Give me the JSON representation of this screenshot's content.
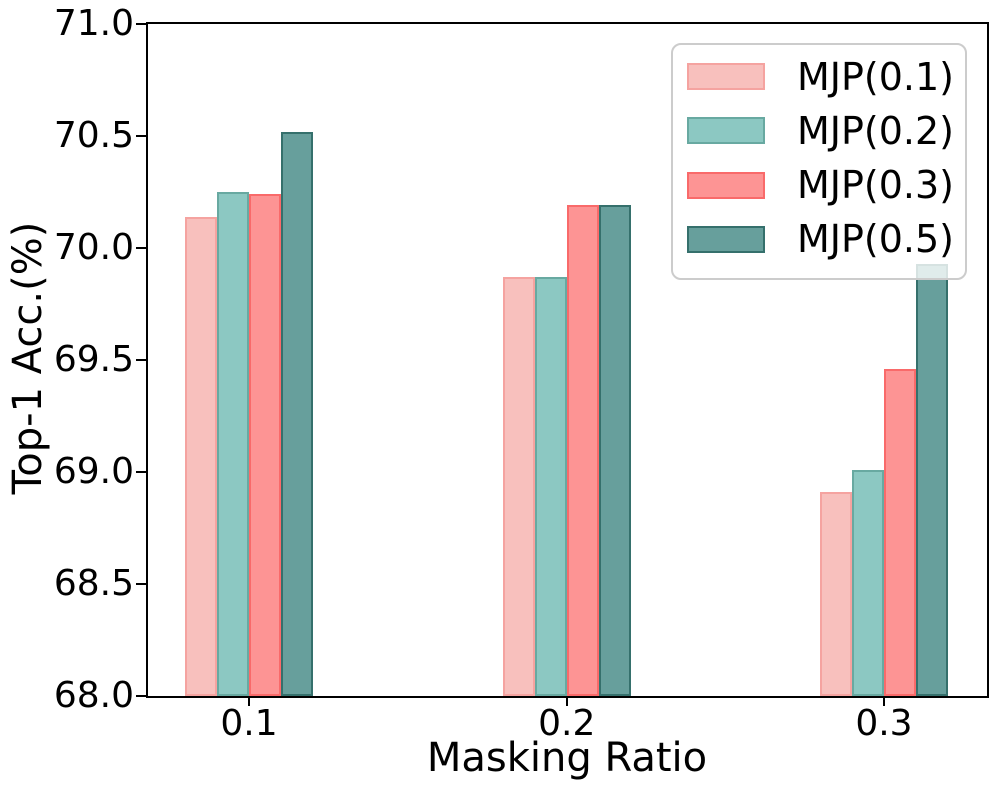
{
  "chart_data": {
    "type": "bar",
    "title": "",
    "xlabel": "Masking Ratio",
    "ylabel": "Top-1 Acc.(%)",
    "categories": [
      "0.1",
      "0.2",
      "0.3"
    ],
    "series": [
      {
        "name": "MJP(0.1)",
        "values": [
          70.14,
          69.87,
          68.91
        ],
        "fill": "#f8c0bd",
        "edge": "#f5a3a0"
      },
      {
        "name": "MJP(0.2)",
        "values": [
          70.25,
          69.87,
          69.01
        ],
        "fill": "#8cc8c2",
        "edge": "#68a9a1"
      },
      {
        "name": "MJP(0.3)",
        "values": [
          70.24,
          70.19,
          69.46
        ],
        "fill": "#fd9494",
        "edge": "#f96a6a"
      },
      {
        "name": "MJP(0.5)",
        "values": [
          70.52,
          70.19,
          69.93
        ],
        "fill": "#679f9c",
        "edge": "#35706c"
      }
    ],
    "ylim": [
      68.0,
      71.0
    ],
    "ytick_labels": [
      "68.0",
      "68.5",
      "69.0",
      "69.5",
      "70.0",
      "70.5",
      "71.0"
    ],
    "xtick_labels": [
      "0.1",
      "0.2",
      "0.3"
    ],
    "legend_position": "upper right",
    "grid": false,
    "axis_color": "#000000",
    "legend_border_color": "#cccccc"
  }
}
